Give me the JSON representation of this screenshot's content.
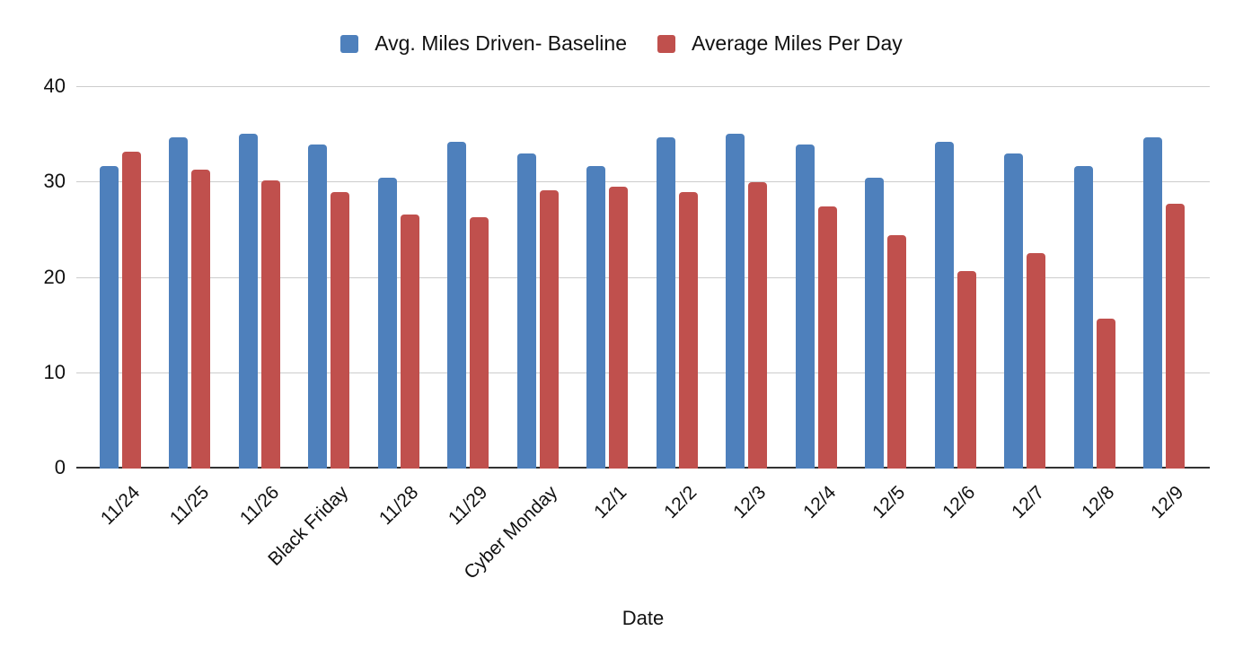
{
  "chart_data": {
    "type": "bar",
    "xlabel": "Date",
    "categories": [
      "11/24",
      "11/25",
      "11/26",
      "Black Friday",
      "11/28",
      "11/29",
      "Cyber Monday",
      "12/1",
      "12/2",
      "12/3",
      "12/4",
      "12/5",
      "12/6",
      "12/7",
      "12/8",
      "12/9"
    ],
    "series": [
      {
        "name": "Avg. Miles Driven- Baseline",
        "color": "#4E80BC",
        "values": [
          31.7,
          34.7,
          35.1,
          34,
          30.5,
          34.3,
          33,
          31.7,
          34.7,
          35.1,
          34,
          30.5,
          34.3,
          33,
          31.7,
          34.7
        ]
      },
      {
        "name": "Average Miles Per Day",
        "color": "#C0504D",
        "values": [
          33.2,
          31.3,
          30.2,
          29,
          26.6,
          26.4,
          29.2,
          29.6,
          29,
          30,
          27.5,
          24.5,
          20.7,
          22.6,
          15.7,
          27.8
        ]
      }
    ],
    "ylim": [
      0,
      40
    ],
    "yticks": [
      0,
      10,
      20,
      30,
      40
    ],
    "grid": true,
    "legend_position": "top",
    "colors": {
      "gridline": "#CCCCCC",
      "axis": "#333333",
      "text": "#111111",
      "background": "#FFFFFF"
    }
  }
}
